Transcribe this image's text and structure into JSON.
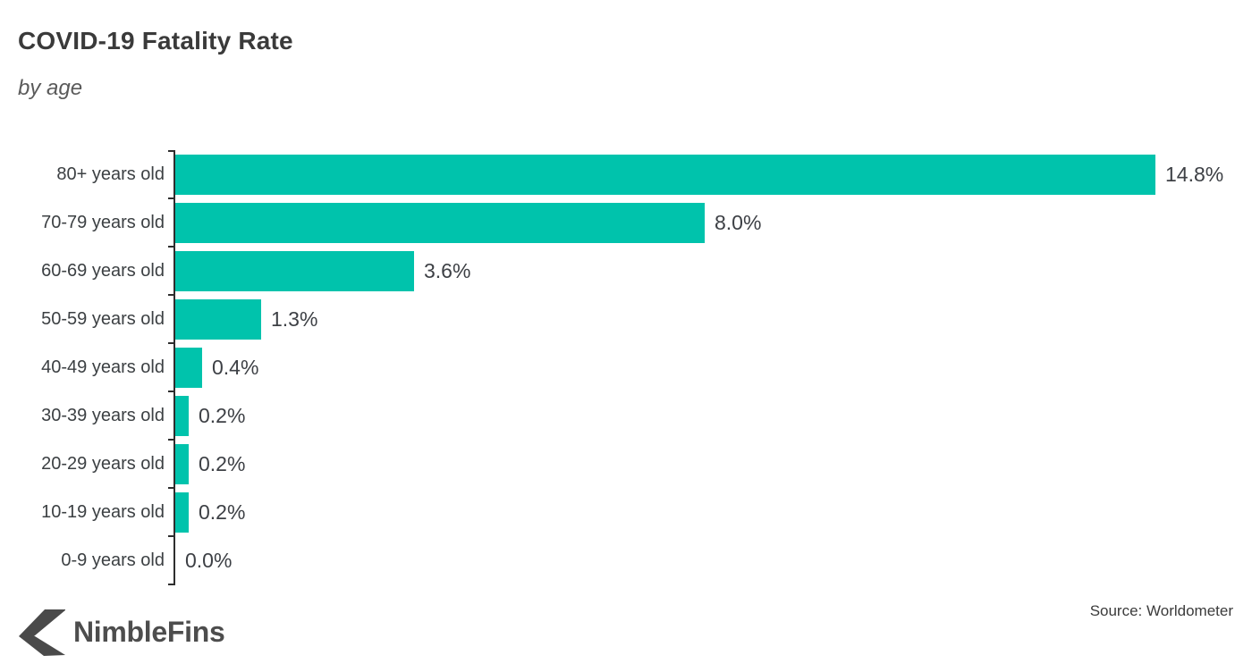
{
  "header": {
    "title": "COVID-19 Fatality Rate",
    "subtitle": "by age"
  },
  "chart_data": {
    "type": "bar",
    "orientation": "horizontal",
    "title": "COVID-19 Fatality Rate",
    "subtitle": "by age",
    "categories": [
      "80+ years old",
      "70-79 years old",
      "60-69 years old",
      "50-59 years old",
      "40-49 years old",
      "30-39 years old",
      "20-29 years old",
      "10-19 years old",
      "0-9 years old"
    ],
    "values": [
      14.8,
      8.0,
      3.6,
      1.3,
      0.4,
      0.2,
      0.2,
      0.2,
      0.0
    ],
    "value_labels": [
      "14.8%",
      "8.0%",
      "3.6%",
      "1.3%",
      "0.4%",
      "0.2%",
      "0.2%",
      "0.2%",
      "0.0%"
    ],
    "xlabel": "",
    "ylabel": "",
    "xlim": [
      0,
      14.8
    ],
    "grid": false,
    "legend": false,
    "bar_color": "#00c3ac",
    "axis_color": "#2e2e2e"
  },
  "footer": {
    "source": "Source: Worldometer",
    "logo_text": "NimbleFins"
  },
  "colors": {
    "accent": "#00c3ac",
    "title_text": "#3a3a3a",
    "category_text": "#3c4043",
    "value_text": "#3d4045",
    "logo_text": "#4d4d4d"
  }
}
